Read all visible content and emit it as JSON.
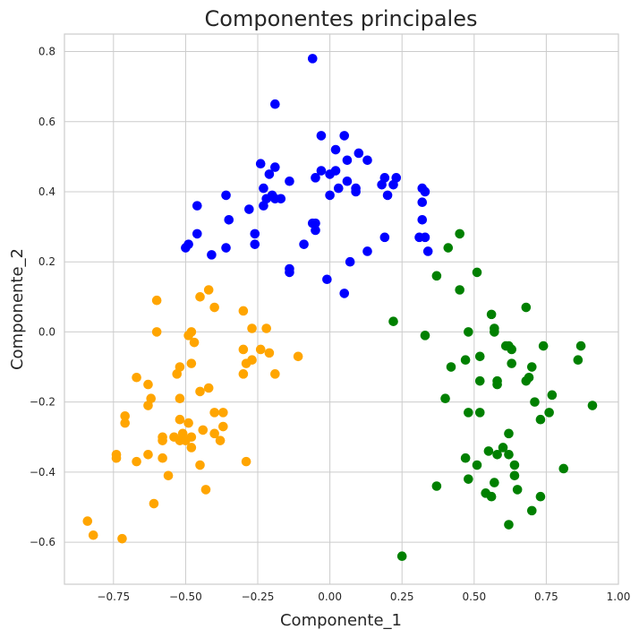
{
  "chart_data": {
    "type": "scatter",
    "title": "Componentes principales",
    "xlabel": "Componente_1",
    "ylabel": "Componente_2",
    "xlim": [
      -0.92,
      1.0
    ],
    "ylim": [
      -0.72,
      0.85
    ],
    "grid": true,
    "xticks": [
      -0.75,
      -0.5,
      -0.25,
      0.0,
      0.25,
      0.5,
      0.75,
      1.0
    ],
    "xtick_labels": [
      "−0.75",
      "−0.50",
      "−0.25",
      "0.00",
      "0.25",
      "0.50",
      "0.75",
      "1.00"
    ],
    "yticks": [
      -0.6,
      -0.4,
      -0.2,
      0.0,
      0.2,
      0.4,
      0.6,
      0.8
    ],
    "ytick_labels": [
      "−0.6",
      "−0.4",
      "−0.2",
      "0.0",
      "0.2",
      "0.4",
      "0.6",
      "0.8"
    ],
    "series": [
      {
        "color": "#0000ff",
        "points": [
          [
            -0.06,
            0.78
          ],
          [
            -0.19,
            0.65
          ],
          [
            -0.03,
            0.56
          ],
          [
            0.05,
            0.56
          ],
          [
            0.02,
            0.52
          ],
          [
            -0.24,
            0.48
          ],
          [
            -0.19,
            0.47
          ],
          [
            0.1,
            0.51
          ],
          [
            0.06,
            0.49
          ],
          [
            0.13,
            0.49
          ],
          [
            -0.03,
            0.46
          ],
          [
            0.0,
            0.45
          ],
          [
            -0.05,
            0.44
          ],
          [
            0.02,
            0.46
          ],
          [
            -0.21,
            0.45
          ],
          [
            0.19,
            0.44
          ],
          [
            0.23,
            0.44
          ],
          [
            0.32,
            0.41
          ],
          [
            0.33,
            0.4
          ],
          [
            -0.23,
            0.41
          ],
          [
            -0.2,
            0.39
          ],
          [
            -0.14,
            0.43
          ],
          [
            0.06,
            0.43
          ],
          [
            0.09,
            0.41
          ],
          [
            0.03,
            0.41
          ],
          [
            0.18,
            0.42
          ],
          [
            0.22,
            0.42
          ],
          [
            -0.36,
            0.39
          ],
          [
            -0.22,
            0.38
          ],
          [
            -0.19,
            0.38
          ],
          [
            -0.17,
            0.38
          ],
          [
            0.0,
            0.39
          ],
          [
            0.09,
            0.4
          ],
          [
            0.2,
            0.39
          ],
          [
            -0.46,
            0.36
          ],
          [
            -0.23,
            0.36
          ],
          [
            -0.28,
            0.35
          ],
          [
            0.32,
            0.37
          ],
          [
            -0.35,
            0.32
          ],
          [
            -0.05,
            0.31
          ],
          [
            -0.06,
            0.31
          ],
          [
            0.32,
            0.32
          ],
          [
            -0.26,
            0.28
          ],
          [
            -0.05,
            0.29
          ],
          [
            -0.46,
            0.28
          ],
          [
            0.19,
            0.27
          ],
          [
            0.31,
            0.27
          ],
          [
            0.33,
            0.27
          ],
          [
            -0.26,
            0.25
          ],
          [
            -0.09,
            0.25
          ],
          [
            -0.49,
            0.25
          ],
          [
            -0.5,
            0.24
          ],
          [
            -0.36,
            0.24
          ],
          [
            0.34,
            0.23
          ],
          [
            -0.41,
            0.22
          ],
          [
            0.13,
            0.23
          ],
          [
            0.07,
            0.2
          ],
          [
            -0.14,
            0.18
          ],
          [
            -0.14,
            0.17
          ],
          [
            -0.01,
            0.15
          ],
          [
            0.05,
            0.11
          ]
        ]
      },
      {
        "color": "#ffa500",
        "points": [
          [
            -0.42,
            0.12
          ],
          [
            -0.45,
            0.1
          ],
          [
            -0.6,
            0.09
          ],
          [
            -0.4,
            0.07
          ],
          [
            -0.3,
            0.06
          ],
          [
            -0.27,
            0.01
          ],
          [
            -0.22,
            0.01
          ],
          [
            -0.6,
            0.0
          ],
          [
            -0.48,
            0.0
          ],
          [
            -0.49,
            -0.01
          ],
          [
            -0.47,
            -0.03
          ],
          [
            -0.3,
            -0.05
          ],
          [
            -0.24,
            -0.05
          ],
          [
            -0.21,
            -0.06
          ],
          [
            -0.11,
            -0.07
          ],
          [
            -0.27,
            -0.08
          ],
          [
            -0.29,
            -0.09
          ],
          [
            -0.48,
            -0.09
          ],
          [
            -0.52,
            -0.1
          ],
          [
            -0.3,
            -0.12
          ],
          [
            -0.53,
            -0.12
          ],
          [
            -0.19,
            -0.12
          ],
          [
            -0.67,
            -0.13
          ],
          [
            -0.63,
            -0.15
          ],
          [
            -0.42,
            -0.16
          ],
          [
            -0.45,
            -0.17
          ],
          [
            -0.62,
            -0.19
          ],
          [
            -0.52,
            -0.19
          ],
          [
            -0.63,
            -0.21
          ],
          [
            -0.4,
            -0.23
          ],
          [
            -0.37,
            -0.23
          ],
          [
            -0.71,
            -0.24
          ],
          [
            -0.52,
            -0.25
          ],
          [
            -0.71,
            -0.26
          ],
          [
            -0.49,
            -0.26
          ],
          [
            -0.37,
            -0.27
          ],
          [
            -0.44,
            -0.28
          ],
          [
            -0.51,
            -0.29
          ],
          [
            -0.4,
            -0.29
          ],
          [
            -0.58,
            -0.3
          ],
          [
            -0.54,
            -0.3
          ],
          [
            -0.48,
            -0.3
          ],
          [
            -0.58,
            -0.31
          ],
          [
            -0.52,
            -0.31
          ],
          [
            -0.5,
            -0.31
          ],
          [
            -0.38,
            -0.31
          ],
          [
            -0.48,
            -0.33
          ],
          [
            -0.63,
            -0.35
          ],
          [
            -0.74,
            -0.35
          ],
          [
            -0.74,
            -0.36
          ],
          [
            -0.58,
            -0.36
          ],
          [
            -0.29,
            -0.37
          ],
          [
            -0.67,
            -0.37
          ],
          [
            -0.45,
            -0.38
          ],
          [
            -0.56,
            -0.41
          ],
          [
            -0.43,
            -0.45
          ],
          [
            -0.61,
            -0.49
          ],
          [
            -0.84,
            -0.54
          ],
          [
            -0.82,
            -0.58
          ],
          [
            -0.72,
            -0.59
          ]
        ]
      },
      {
        "color": "#008000",
        "points": [
          [
            0.45,
            0.28
          ],
          [
            0.41,
            0.24
          ],
          [
            0.51,
            0.17
          ],
          [
            0.37,
            0.16
          ],
          [
            0.45,
            0.12
          ],
          [
            0.68,
            0.07
          ],
          [
            0.56,
            0.05
          ],
          [
            0.22,
            0.03
          ],
          [
            0.48,
            0.0
          ],
          [
            0.57,
            0.01
          ],
          [
            0.57,
            0.0
          ],
          [
            0.33,
            -0.01
          ],
          [
            0.61,
            -0.04
          ],
          [
            0.87,
            -0.04
          ],
          [
            0.62,
            -0.04
          ],
          [
            0.63,
            -0.05
          ],
          [
            0.74,
            -0.04
          ],
          [
            0.47,
            -0.08
          ],
          [
            0.52,
            -0.07
          ],
          [
            0.86,
            -0.08
          ],
          [
            0.42,
            -0.1
          ],
          [
            0.63,
            -0.09
          ],
          [
            0.7,
            -0.1
          ],
          [
            0.52,
            -0.14
          ],
          [
            0.58,
            -0.14
          ],
          [
            0.68,
            -0.14
          ],
          [
            0.69,
            -0.13
          ],
          [
            0.58,
            -0.15
          ],
          [
            0.77,
            -0.18
          ],
          [
            0.4,
            -0.19
          ],
          [
            0.71,
            -0.2
          ],
          [
            0.91,
            -0.21
          ],
          [
            0.48,
            -0.23
          ],
          [
            0.52,
            -0.23
          ],
          [
            0.76,
            -0.23
          ],
          [
            0.73,
            -0.25
          ],
          [
            0.62,
            -0.29
          ],
          [
            0.6,
            -0.33
          ],
          [
            0.55,
            -0.34
          ],
          [
            0.62,
            -0.35
          ],
          [
            0.58,
            -0.35
          ],
          [
            0.47,
            -0.36
          ],
          [
            0.51,
            -0.38
          ],
          [
            0.64,
            -0.38
          ],
          [
            0.81,
            -0.39
          ],
          [
            0.64,
            -0.41
          ],
          [
            0.48,
            -0.42
          ],
          [
            0.57,
            -0.43
          ],
          [
            0.37,
            -0.44
          ],
          [
            0.65,
            -0.45
          ],
          [
            0.54,
            -0.46
          ],
          [
            0.56,
            -0.47
          ],
          [
            0.73,
            -0.47
          ],
          [
            0.7,
            -0.51
          ],
          [
            0.62,
            -0.55
          ],
          [
            0.25,
            -0.64
          ]
        ]
      }
    ]
  }
}
